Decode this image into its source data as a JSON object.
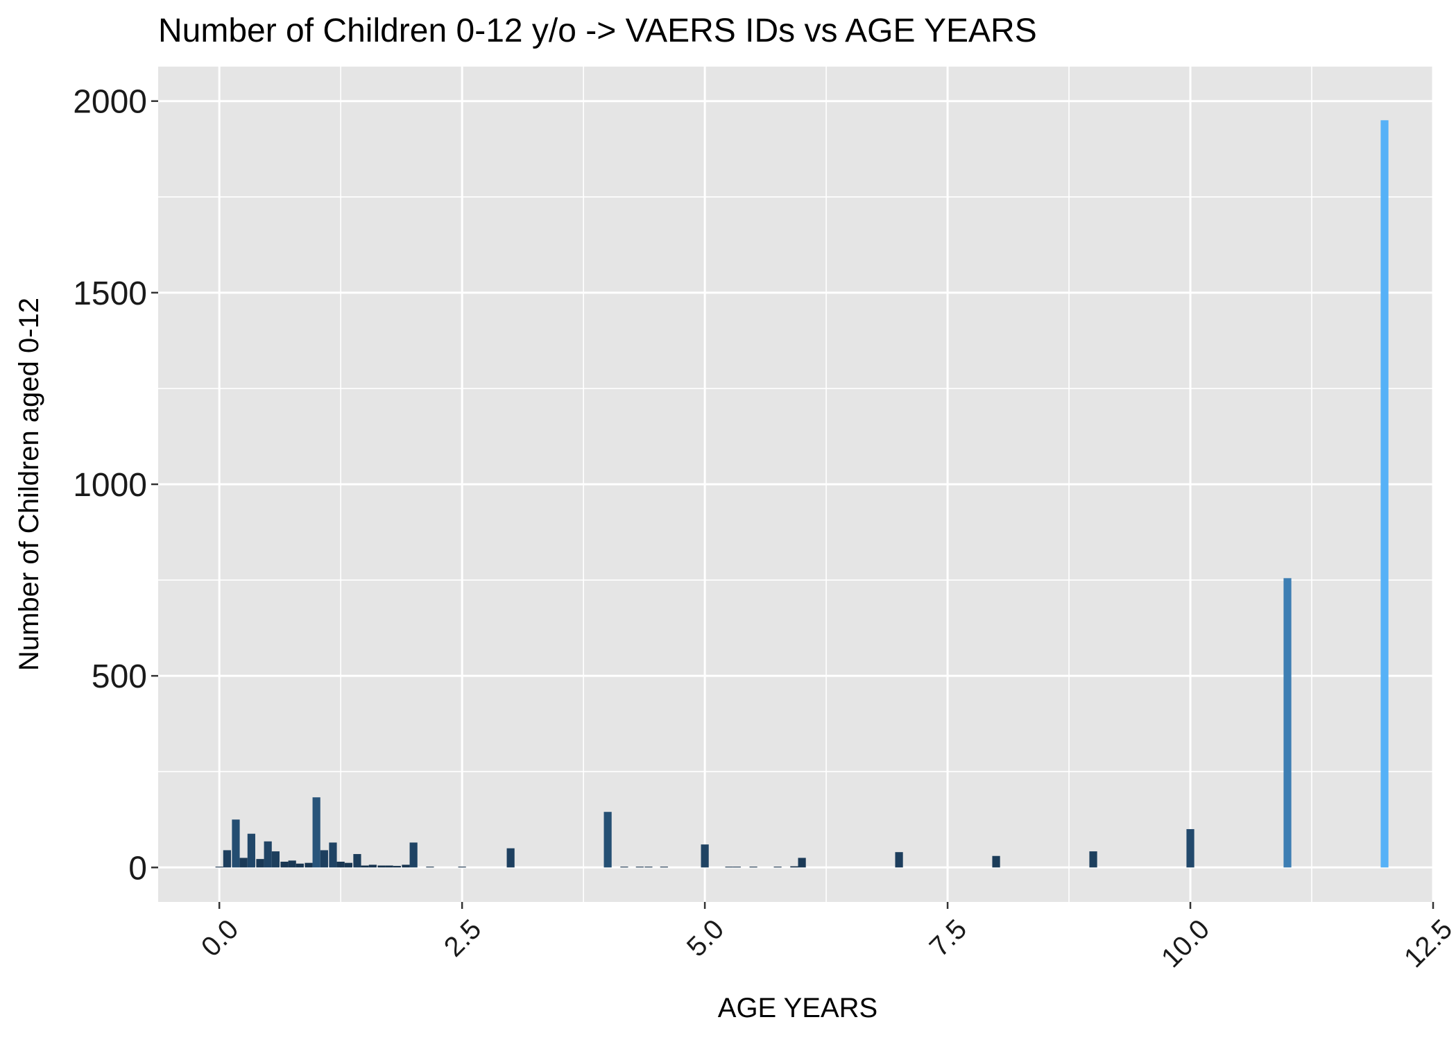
{
  "chart_data": {
    "type": "bar",
    "title": "Number of Children 0-12 y/o -> VAERS IDs vs AGE YEARS",
    "xlabel": "AGE YEARS",
    "ylabel": "Number of Children aged 0-12",
    "xlim": [
      -0.63,
      12.5
    ],
    "ylim": [
      -90,
      2090
    ],
    "xticks": [
      0.0,
      2.5,
      5.0,
      7.5,
      10.0,
      12.5
    ],
    "xtick_labels": [
      "0.0",
      "2.5",
      "5.0",
      "7.5",
      "10.0",
      "12.5"
    ],
    "yticks": [
      0,
      500,
      1000,
      1500,
      2000
    ],
    "ytick_labels": [
      "0",
      "500",
      "1000",
      "1500",
      "2000"
    ],
    "grid": true,
    "legend": "none",
    "fill_gradient": {
      "low": "#132B43",
      "high": "#56B1F7"
    },
    "x": [
      0.0,
      0.08,
      0.17,
      0.25,
      0.33,
      0.42,
      0.5,
      0.58,
      0.67,
      0.75,
      0.83,
      0.92,
      1.0,
      1.08,
      1.17,
      1.25,
      1.33,
      1.42,
      1.5,
      1.58,
      1.67,
      1.75,
      1.83,
      1.92,
      2.0,
      2.17,
      2.5,
      3.0,
      4.0,
      4.17,
      4.33,
      4.42,
      4.58,
      5.0,
      5.25,
      5.33,
      5.5,
      5.75,
      5.92,
      6.0,
      7.0,
      8.0,
      9.0,
      10.0,
      11.0,
      12.0
    ],
    "values": [
      2,
      45,
      125,
      25,
      88,
      22,
      68,
      42,
      15,
      18,
      10,
      12,
      183,
      45,
      65,
      15,
      12,
      35,
      5,
      7,
      5,
      5,
      4,
      7,
      65,
      2,
      2,
      50,
      145,
      2,
      2,
      2,
      2,
      60,
      2,
      2,
      2,
      2,
      3,
      25,
      40,
      30,
      42,
      100,
      755,
      1950
    ]
  }
}
